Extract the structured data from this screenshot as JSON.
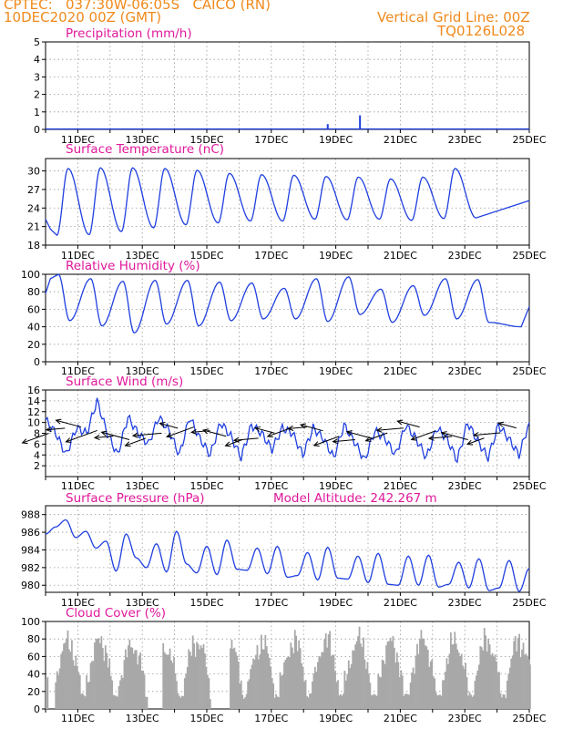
{
  "header": {
    "line1": "CPTEC:   037:30W-06:05S   CAICO (RN)",
    "line2": "10DEC2020 00Z (GMT)",
    "vgrid": "Vertical Grid Line: 00Z",
    "code": "TQ0126L028"
  },
  "colors": {
    "header": "#f08a1c",
    "title": "#e0189b",
    "line": "#1f3fdf",
    "cloud": "#a8a8a8",
    "grid": "#9a9a9a",
    "axis": "#000000"
  },
  "x_tick_labels": [
    "11DEC",
    "13DEC",
    "15DEC",
    "17DEC",
    "19DEC",
    "21DEC",
    "23DEC",
    "25DEC"
  ],
  "chart_data": [
    {
      "type": "bar",
      "title": "Precipitation (mm/h)",
      "x": [
        "19DEC",
        "20DEC"
      ],
      "values": [
        0.3,
        0.8
      ],
      "ylim": [
        0,
        5
      ],
      "yticks": [
        0,
        1,
        2,
        3,
        4,
        5
      ],
      "grid": true
    },
    {
      "type": "line",
      "title": "Surface Temperature (nC)",
      "daily_max": [
        30.4,
        30.5,
        30.5,
        30.4,
        30.1,
        29.6,
        29.4,
        29.3,
        29.1,
        29.0,
        28.7,
        29.0,
        30.4
      ],
      "daily_min": [
        19.6,
        19.7,
        20.2,
        20.8,
        21.3,
        21.6,
        21.9,
        21.9,
        22.2,
        22.1,
        22.2,
        22.0,
        22.3,
        22.4
      ],
      "ylim": [
        18,
        32
      ],
      "yticks": [
        18,
        21,
        24,
        27,
        30
      ],
      "grid": true
    },
    {
      "type": "line",
      "title": "Relative Humidity (%)",
      "daily_max": [
        100,
        95,
        92,
        93,
        93,
        91,
        90,
        84,
        95,
        97,
        83,
        87,
        95,
        94
      ],
      "daily_min": [
        47,
        41,
        33,
        43,
        41,
        47,
        49,
        49,
        46,
        54,
        45,
        53,
        49,
        45,
        40
      ],
      "ylim": [
        0,
        100
      ],
      "yticks": [
        0,
        20,
        40,
        60,
        80,
        100
      ],
      "grid": true
    },
    {
      "type": "line",
      "title": "Surface Wind (m/s)",
      "series": [
        {
          "values": [
            10.5,
            8.0,
            4.0,
            9.0,
            8.0,
            14.0,
            8.0,
            4.0,
            11.0,
            8.0,
            6.0,
            11.0,
            8.5,
            4.0,
            11.0,
            7.0,
            4.0,
            10.0,
            7.5,
            3.5,
            9.5,
            8.0,
            5.0,
            9.0,
            8.0,
            4.0,
            9.0,
            7.0,
            3.5,
            9.5,
            6.5,
            3.0,
            8.5,
            7.0,
            4.0,
            9.5,
            7.0,
            3.5,
            9.0,
            7.0,
            3.0,
            10.0,
            6.5,
            3.5,
            9.5,
            7.0,
            4.0,
            10.0
          ]
        }
      ],
      "ylim": [
        0,
        16
      ],
      "yticks": [
        2,
        4,
        6,
        8,
        10,
        12,
        14,
        16
      ],
      "grid": true
    },
    {
      "type": "line",
      "title": "Surface Pressure (hPa)",
      "annotation": "Model Altitude: 242.267 m",
      "series": [
        {
          "values": [
            985.8,
            986.6,
            987.4,
            985.4,
            986.1,
            984.2,
            985.0,
            981.6,
            985.8,
            983.1,
            982.0,
            984.7,
            981.5,
            986.1,
            982.4,
            981.4,
            984.4,
            981.2,
            985.1,
            981.8,
            981.7,
            984.2,
            981.3,
            984.4,
            980.9,
            981.1,
            983.7,
            980.6,
            984.3,
            980.8,
            980.7,
            983.3,
            980.3,
            983.6,
            980.1,
            980.0,
            983.3,
            980.0,
            983.4,
            979.8,
            980.1,
            982.6,
            979.7,
            983.0,
            979.4,
            979.7,
            982.8,
            979.3,
            981.9
          ]
        }
      ],
      "ylim": [
        979.2,
        989
      ],
      "yticks": [
        980,
        982,
        984,
        986,
        988
      ],
      "grid": true
    },
    {
      "type": "area",
      "title": "Cloud Cover (%)",
      "daily_peak": [
        97,
        100,
        93,
        91,
        100,
        95,
        96,
        98,
        99,
        100,
        96,
        99,
        97,
        100,
        100
      ],
      "ylim": [
        0,
        100
      ],
      "yticks": [
        0,
        20,
        40,
        60,
        80,
        100
      ],
      "grid": true
    }
  ]
}
